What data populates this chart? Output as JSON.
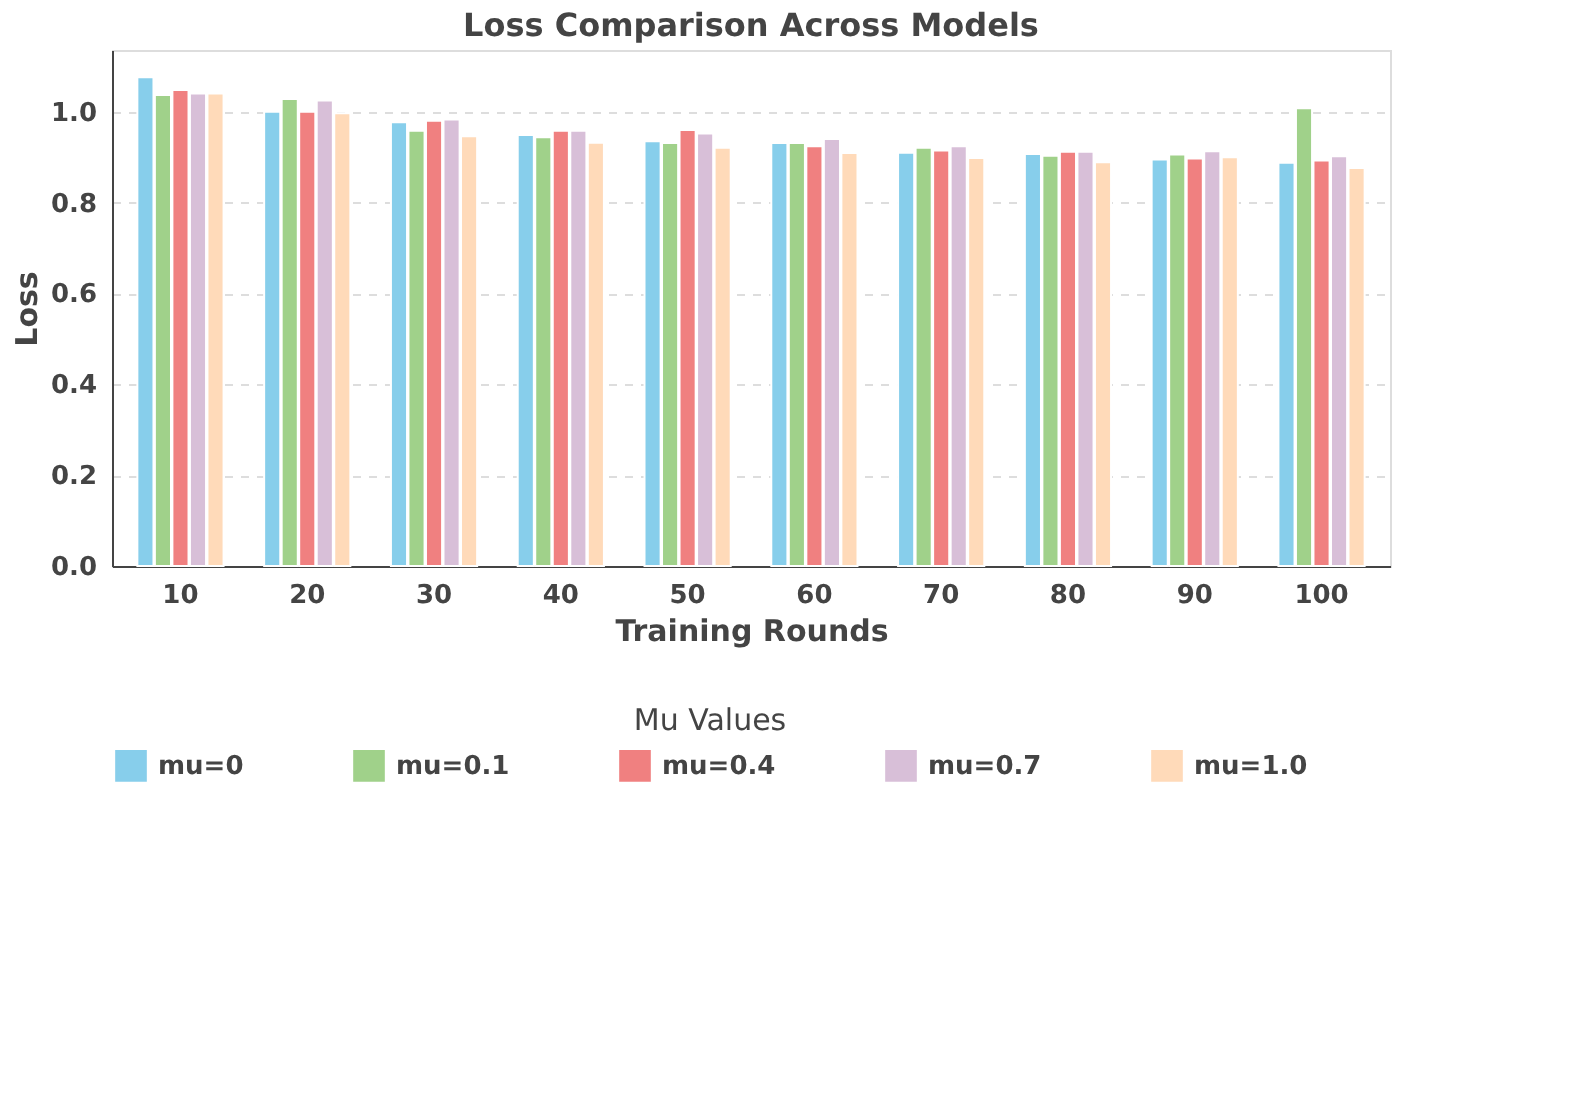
{
  "chart_data": {
    "type": "bar",
    "title": "Loss Comparison Across Models",
    "xlabel": "Training Rounds",
    "ylabel": "Loss",
    "legend_title": "Mu Values",
    "categories": [
      "10",
      "20",
      "30",
      "40",
      "50",
      "60",
      "70",
      "80",
      "90",
      "100"
    ],
    "series": [
      {
        "name": "mu=0",
        "color": "#87ceeb",
        "values": [
          1.076,
          1.0,
          0.977,
          0.949,
          0.935,
          0.931,
          0.91,
          0.907,
          0.895,
          0.888
        ]
      },
      {
        "name": "mu=0.1",
        "color": "#a0d18a",
        "values": [
          1.037,
          1.028,
          0.958,
          0.944,
          0.931,
          0.931,
          0.921,
          0.903,
          0.906,
          1.008
        ]
      },
      {
        "name": "mu=0.4",
        "color": "#f08080",
        "values": [
          1.048,
          1.0,
          0.98,
          0.958,
          0.96,
          0.924,
          0.915,
          0.912,
          0.897,
          0.893
        ]
      },
      {
        "name": "mu=0.7",
        "color": "#d8bfd8",
        "values": [
          1.04,
          1.025,
          0.983,
          0.958,
          0.952,
          0.94,
          0.924,
          0.912,
          0.913,
          0.902
        ]
      },
      {
        "name": "mu=1.0",
        "color": "#ffdab9",
        "values": [
          1.04,
          0.997,
          0.946,
          0.932,
          0.921,
          0.909,
          0.898,
          0.889,
          0.9,
          0.876
        ]
      }
    ],
    "ylim": [
      0,
      1.136
    ],
    "yticks": [
      {
        "value": 0,
        "label": "0.0"
      },
      {
        "value": 0.2,
        "label": "0.2"
      },
      {
        "value": 0.4,
        "label": "0.4"
      },
      {
        "value": 0.6,
        "label": "0.6"
      },
      {
        "value": 0.8,
        "label": "0.8"
      },
      {
        "value": 1.0,
        "label": "1.0"
      }
    ],
    "grid": "y",
    "legend": "bottom"
  }
}
